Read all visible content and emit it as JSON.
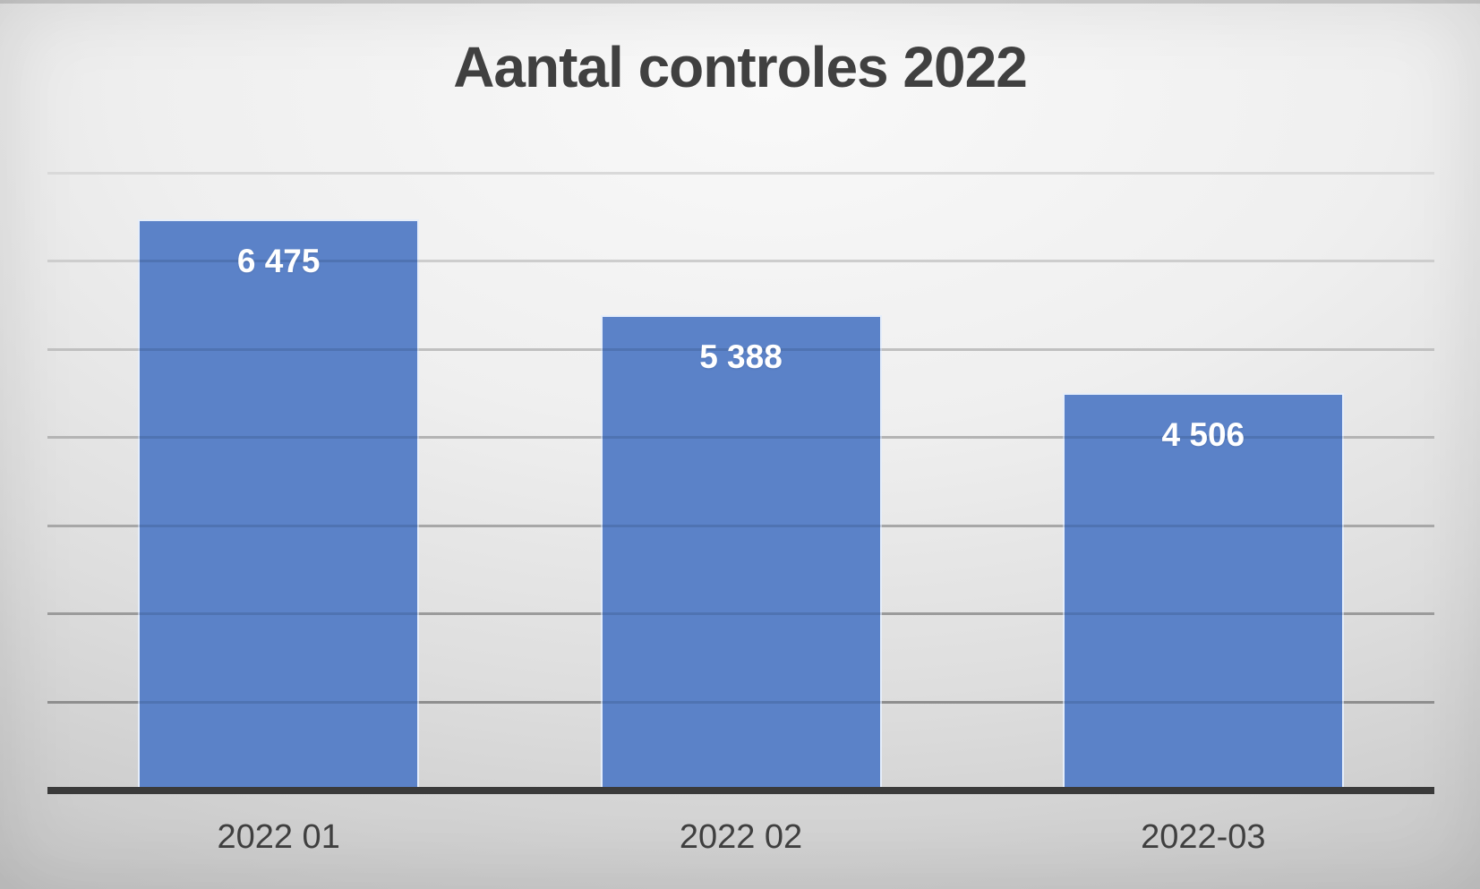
{
  "slide": {
    "title": "Aantal controles 2022"
  },
  "chart_data": {
    "type": "bar",
    "title": "Aantal controles 2022",
    "categories": [
      "2022 01",
      "2022 02",
      "2022-03"
    ],
    "values": [
      6475,
      5388,
      4506
    ],
    "data_labels": [
      "6 475",
      "5 388",
      "4 506"
    ],
    "series": [
      {
        "name": "Aantal controles",
        "values": [
          6475,
          5388,
          4506
        ]
      }
    ],
    "xlabel": "",
    "ylabel": "",
    "ylim": [
      0,
      7000
    ],
    "gridline_step": 1000,
    "grid": true,
    "y_tick_labels_visible": false,
    "legend_position": "none",
    "data_label_position": "inside-end",
    "colors": {
      "bar_fill": "#5b82c8",
      "bar_border": "#e6eefa",
      "data_label_text": "#ffffff",
      "title_text": "#404040",
      "axis_label_text": "#3f3f3f",
      "axis_line": "#3a3a3a",
      "gridline_top": "#d9d9d9",
      "gridline_bottom": "#828282"
    }
  }
}
